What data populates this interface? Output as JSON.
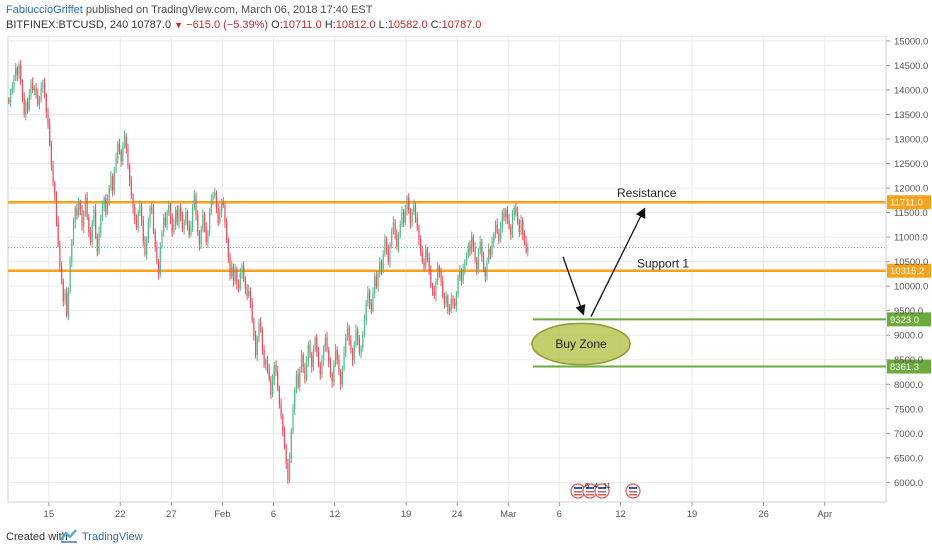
{
  "header": {
    "author": "FabiuccioGriffet",
    "published": "published on TradingView.com, March 06, 2018 17:40 EST",
    "symbol": "BITFINEX:BTCUSD, 240",
    "last": "10787.0",
    "change": "−615.0 (−5.39%)",
    "o_label": "O:",
    "o_value": "10711.0",
    "h_label": "H:",
    "h_value": "10812.0",
    "l_label": "L:",
    "l_value": "10582.0",
    "c_label": "C:",
    "c_value": "10787.0"
  },
  "footer": {
    "created": "Created with",
    "brand": "TradingView"
  },
  "chart_data": {
    "type": "candlestick",
    "ylim": [
      5600,
      15100
    ],
    "yticks": [
      6000,
      6500,
      7000,
      7500,
      8000,
      8500,
      9000,
      9500,
      10000,
      10500,
      11000,
      11500,
      12000,
      12500,
      13000,
      13500,
      14000,
      14500,
      15000
    ],
    "ytick_labels": [
      "6000.0",
      "6500.0",
      "7000.0",
      "7500.0",
      "8000.0",
      "8500.0",
      "9000.0",
      "9500.0",
      "10000.0",
      "10500.0",
      "11000.0",
      "11500.0",
      "12000.0",
      "12500.0",
      "13000.0",
      "13500.0",
      "14000.0",
      "14500.0",
      "15000.0"
    ],
    "xlim": [
      "2018-01-11",
      "2018-04-07"
    ],
    "xticks": [
      {
        "date": "2018-01-15",
        "label": "15"
      },
      {
        "date": "2018-01-22",
        "label": "22"
      },
      {
        "date": "2018-01-27",
        "label": "27"
      },
      {
        "date": "2018-02-01",
        "label": "Feb"
      },
      {
        "date": "2018-02-06",
        "label": "6"
      },
      {
        "date": "2018-02-12",
        "label": "12"
      },
      {
        "date": "2018-02-19",
        "label": "19"
      },
      {
        "date": "2018-02-24",
        "label": "24"
      },
      {
        "date": "2018-03-01",
        "label": "Mar"
      },
      {
        "date": "2018-03-06",
        "label": "6"
      },
      {
        "date": "2018-03-12",
        "label": "12"
      },
      {
        "date": "2018-03-19",
        "label": "19"
      },
      {
        "date": "2018-03-26",
        "label": "26"
      },
      {
        "date": "2018-04-01",
        "label": "Apr"
      }
    ],
    "candle_interval": "240",
    "closes": [
      [
        13750,
        13950,
        14050,
        14250,
        14450,
        14300,
        14500,
        14150,
        13850,
        13500,
        13750,
        13600,
        13900,
        14150,
        14000,
        14050,
        13900,
        13700,
        13800,
        14050,
        14150,
        13900,
        13550,
        13300,
        12900,
        12450,
        12100,
        11850,
        11300,
        10850,
        10400,
        10100,
        9700,
        9850,
        9400,
        9900,
        10500,
        10900,
        11300,
        11600,
        11450,
        11700,
        11550,
        11200,
        11500,
        11800,
        11400,
        11100,
        10900,
        11300,
        11550,
        11000,
        10700,
        11100,
        11400,
        11650,
        11800,
        11500,
        11750,
        12000
      ],
      [
        12250,
        11950,
        12350,
        12600,
        12900,
        12750,
        12550,
        12850,
        13050,
        12800,
        12450,
        12150,
        11850,
        11600,
        11350,
        11200,
        11500,
        11650,
        11350,
        10900,
        10650,
        10950,
        11300,
        11600,
        11550,
        11100,
        10800,
        10500,
        10250,
        10800,
        11100,
        11400,
        11250,
        11500,
        11650,
        11400,
        11100,
        11250,
        11550,
        11300,
        11600,
        11400,
        11150,
        11300,
        11500,
        11250,
        11050,
        11200,
        11600,
        11850,
        11450,
        11100,
        10850,
        11150,
        11450,
        11200,
        10900,
        11100,
        11500,
        11750
      ],
      [
        11850,
        11900,
        11600,
        11300,
        11500,
        11700,
        11650,
        11300,
        10950,
        10600,
        10200,
        10400,
        10100,
        10350,
        10050,
        9950,
        10250,
        10400,
        10150,
        9950,
        9800,
        9900,
        9650,
        9300,
        9000,
        8600,
        8950,
        9250,
        9100,
        8700,
        8400,
        8500,
        8300,
        8100,
        7800,
        8100,
        8400,
        8250,
        7900,
        7600,
        7350,
        7050,
        6750,
        6400,
        6050,
        6500,
        7050,
        7500,
        7900,
        8200,
        7950,
        8300,
        8600,
        8350,
        8100,
        8450,
        8800,
        8600,
        8350,
        8700
      ],
      [
        8950,
        8650,
        8400,
        8200,
        8500,
        8750,
        8950,
        8700,
        8450,
        8200,
        8050,
        8400,
        8700,
        8500,
        8250,
        8000,
        8300,
        8650,
        8950,
        9150,
        8900,
        8700,
        8500,
        8800,
        9100,
        8900,
        8650,
        8750,
        9000,
        9300,
        9650,
        9900,
        9650,
        9500,
        9850,
        10200,
        10000,
        10250,
        10500,
        10350,
        10650,
        10950,
        10750,
        10500,
        10850,
        11100,
        11300,
        11050,
        10800,
        11050,
        11250,
        11500,
        11300,
        11550,
        11800,
        11550,
        11300,
        11500,
        11650,
        11400
      ],
      [
        11200,
        10950,
        10700,
        10500,
        10400,
        10750,
        10600,
        10300,
        10000,
        9900,
        9800,
        10100,
        10400,
        10300,
        10100,
        9800,
        9650,
        9800,
        9550,
        9500,
        9750,
        9650,
        9600,
        9850,
        10150,
        10300,
        10100,
        10350,
        10500,
        10600,
        10850,
        10700,
        11000,
        10800,
        10550,
        10350,
        10700,
        10900,
        10600,
        10350,
        10200,
        10500,
        10750,
        10650,
        10900,
        11050,
        11250,
        11100,
        10950,
        11200,
        11500,
        11400,
        11550,
        11350,
        11200,
        11050,
        11450,
        11600,
        11500,
        11300
      ],
      [
        11100,
        11350,
        11050,
        10900,
        10700,
        10800
      ]
    ],
    "horizontal_levels": [
      {
        "name": "Resistance",
        "value": 11711.0,
        "label": "11711.0",
        "color": "#f7a21b"
      },
      {
        "name": "Support 1",
        "value": 10315.2,
        "label": "10315.2",
        "color": "#f7a21b"
      },
      {
        "name": "Buy Zone top",
        "value": 9323.0,
        "label": "9323.0",
        "color": "#6aab3a"
      },
      {
        "name": "Buy Zone bottom",
        "value": 8361.3,
        "label": "8361.3",
        "color": "#6aab3a"
      }
    ],
    "last_price": {
      "value": 10787.0
    },
    "annotations": [
      {
        "text": "Resistance"
      },
      {
        "text": "Support 1"
      },
      {
        "text": "Buy Zone"
      }
    ],
    "events": [
      {
        "text": "6"
      },
      {
        "text": "4"
      },
      {
        "text": "11"
      }
    ],
    "colors": {
      "up": "#53b987",
      "down": "#eb4d5c",
      "orange": "#f7a21b",
      "green": "#6aab3a",
      "buyzone_fill": "#b5c24a",
      "buyzone_stroke": "#8f9e32",
      "axis_text": "#555555",
      "grid": "#eaeaea"
    },
    "grid": true
  }
}
